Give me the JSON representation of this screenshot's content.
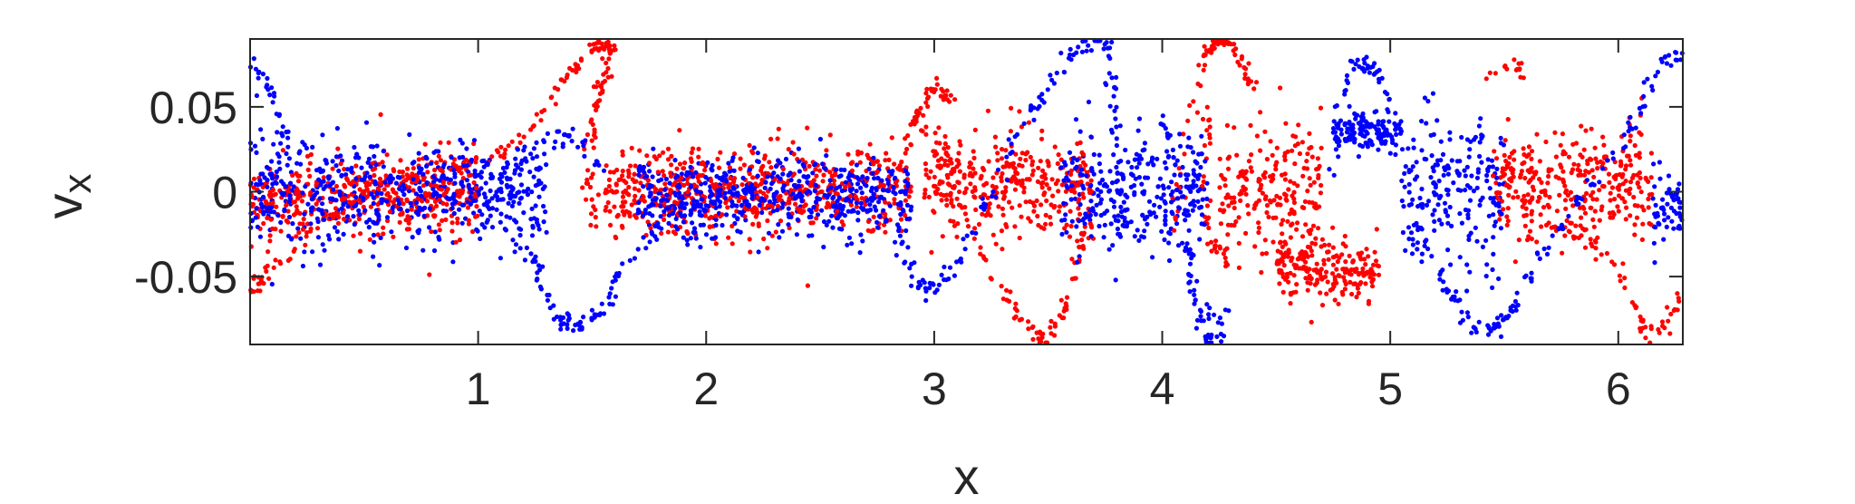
{
  "chart_data": {
    "type": "scatter",
    "title": "",
    "xlabel": "x",
    "ylabel_main": "v",
    "ylabel_sub": "x",
    "xlim": [
      0,
      6.283
    ],
    "ylim": [
      -0.09,
      0.09
    ],
    "xticks": [
      1,
      2,
      3,
      4,
      5,
      6
    ],
    "xtick_labels": [
      "1",
      "2",
      "3",
      "4",
      "5",
      "6"
    ],
    "yticks": [
      -0.05,
      0,
      0.05
    ],
    "ytick_labels": [
      "-0.05",
      "0",
      "0.05"
    ],
    "grid": false,
    "legend": "none",
    "series": [
      {
        "color": "#ff0000",
        "points_per_unit": 450,
        "bulk": [
          {
            "x0": 0.0,
            "x1": 0.25,
            "center": -0.005,
            "spread": 0.018
          },
          {
            "x0": 0.25,
            "x1": 1.0,
            "center": 0.0,
            "spread": 0.022
          },
          {
            "x0": 1.55,
            "x1": 2.9,
            "center": 0.0,
            "spread": 0.024
          },
          {
            "x0": 2.95,
            "x1": 3.7,
            "center": 0.005,
            "spread": 0.028
          },
          {
            "x0": 4.25,
            "x1": 4.7,
            "center": 0.0,
            "spread": 0.035
          },
          {
            "x0": 4.5,
            "x1": 4.95,
            "center": -0.045,
            "spread": 0.015
          },
          {
            "x0": 5.45,
            "x1": 6.15,
            "center": 0.005,
            "spread": 0.028
          }
        ],
        "curves": [
          {
            "pts": [
              [
                0.0,
                -0.058
              ],
              [
                0.1,
                -0.045
              ],
              [
                0.3,
                -0.018
              ],
              [
                0.6,
                0.005
              ],
              [
                0.9,
                0.015
              ],
              [
                1.15,
                0.025
              ],
              [
                1.35,
                0.06
              ],
              [
                1.5,
                0.085
              ],
              [
                1.58,
                0.087
              ]
            ],
            "n": 140
          },
          {
            "pts": [
              [
                1.58,
                0.085
              ],
              [
                1.52,
                0.055
              ],
              [
                1.48,
                0.02
              ],
              [
                1.5,
                -0.02
              ]
            ],
            "n": 60
          },
          {
            "pts": [
              [
                2.83,
                0.005
              ],
              [
                2.92,
                0.045
              ],
              [
                3.0,
                0.062
              ],
              [
                3.1,
                0.052
              ]
            ],
            "n": 45
          },
          {
            "pts": [
              [
                2.95,
                0.04
              ],
              [
                3.1,
                0.0
              ],
              [
                3.25,
                -0.05
              ],
              [
                3.4,
                -0.08
              ],
              [
                3.5,
                -0.088
              ],
              [
                3.6,
                -0.06
              ],
              [
                3.66,
                -0.02
              ]
            ],
            "n": 90
          },
          {
            "pts": [
              [
                4.05,
                -0.035
              ],
              [
                4.1,
                0.03
              ],
              [
                4.18,
                0.08
              ],
              [
                4.25,
                0.09
              ],
              [
                4.32,
                0.085
              ],
              [
                4.4,
                0.06
              ]
            ],
            "n": 70
          },
          {
            "pts": [
              [
                4.2,
                0.05
              ],
              [
                4.18,
                0.0
              ],
              [
                4.22,
                -0.03
              ],
              [
                4.32,
                -0.045
              ]
            ],
            "n": 40
          },
          {
            "pts": [
              [
                5.4,
                0.06
              ],
              [
                5.48,
                0.073
              ],
              [
                5.56,
                0.076
              ],
              [
                5.58,
                0.07
              ]
            ],
            "n": 15
          },
          {
            "pts": [
              [
                5.55,
                -0.03
              ],
              [
                5.75,
                -0.02
              ],
              [
                5.95,
                -0.035
              ],
              [
                6.1,
                -0.075
              ],
              [
                6.15,
                -0.088
              ],
              [
                6.22,
                -0.072
              ],
              [
                6.28,
                -0.06
              ]
            ],
            "n": 70
          }
        ]
      },
      {
        "color": "#0000ff",
        "points_per_unit": 450,
        "bulk": [
          {
            "x0": 0.0,
            "x1": 0.6,
            "center": 0.0,
            "spread": 0.03
          },
          {
            "x0": 0.6,
            "x1": 1.3,
            "center": 0.0,
            "spread": 0.024
          },
          {
            "x0": 1.7,
            "x1": 2.9,
            "center": -0.002,
            "spread": 0.02
          },
          {
            "x0": 3.55,
            "x1": 4.2,
            "center": 0.0,
            "spread": 0.03
          },
          {
            "x0": 4.75,
            "x1": 5.05,
            "center": 0.035,
            "spread": 0.012
          },
          {
            "x0": 5.05,
            "x1": 5.5,
            "center": 0.0,
            "spread": 0.04
          },
          {
            "x0": 6.15,
            "x1": 6.28,
            "center": -0.01,
            "spread": 0.02
          }
        ],
        "curves": [
          {
            "pts": [
              [
                0.0,
                0.078
              ],
              [
                0.05,
                0.07
              ],
              [
                0.1,
                0.055
              ],
              [
                0.15,
                0.03
              ]
            ],
            "n": 25
          },
          {
            "pts": [
              [
                1.15,
                -0.01
              ],
              [
                1.25,
                -0.045
              ],
              [
                1.35,
                -0.075
              ],
              [
                1.45,
                -0.08
              ],
              [
                1.55,
                -0.07
              ],
              [
                1.65,
                -0.04
              ],
              [
                1.8,
                -0.02
              ],
              [
                2.0,
                -0.005
              ],
              [
                2.2,
                0.0
              ]
            ],
            "n": 110
          },
          {
            "pts": [
              [
                1.2,
                0.02
              ],
              [
                1.35,
                0.035
              ],
              [
                1.45,
                0.03
              ],
              [
                1.55,
                0.01
              ]
            ],
            "n": 30
          },
          {
            "pts": [
              [
                2.8,
                0.01
              ],
              [
                2.85,
                -0.03
              ],
              [
                2.92,
                -0.055
              ],
              [
                3.0,
                -0.058
              ],
              [
                3.1,
                -0.04
              ],
              [
                3.25,
                0.0
              ],
              [
                3.4,
                0.04
              ],
              [
                3.55,
                0.075
              ],
              [
                3.7,
                0.088
              ],
              [
                3.78,
                0.085
              ]
            ],
            "n": 120
          },
          {
            "pts": [
              [
                3.75,
                0.08
              ],
              [
                3.8,
                0.04
              ],
              [
                3.82,
                0.0
              ],
              [
                3.85,
                -0.03
              ]
            ],
            "n": 35
          },
          {
            "pts": [
              [
                4.0,
                0.05
              ],
              [
                4.05,
                0.02
              ],
              [
                4.1,
                -0.03
              ],
              [
                4.15,
                -0.07
              ],
              [
                4.2,
                -0.088
              ],
              [
                4.28,
                -0.085
              ]
            ],
            "n": 55
          },
          {
            "pts": [
              [
                4.2,
                -0.07
              ],
              [
                4.25,
                -0.075
              ],
              [
                4.3,
                -0.07
              ]
            ],
            "n": 10
          },
          {
            "pts": [
              [
                4.75,
                0.01
              ],
              [
                4.8,
                0.06
              ],
              [
                4.85,
                0.077
              ],
              [
                4.92,
                0.072
              ],
              [
                5.0,
                0.05
              ]
            ],
            "n": 45
          },
          {
            "pts": [
              [
                5.1,
                -0.015
              ],
              [
                5.25,
                -0.06
              ],
              [
                5.4,
                -0.085
              ],
              [
                5.5,
                -0.075
              ],
              [
                5.65,
                -0.04
              ],
              [
                5.8,
                -0.01
              ],
              [
                5.95,
                0.015
              ],
              [
                6.1,
                0.05
              ],
              [
                6.2,
                0.078
              ],
              [
                6.28,
                0.08
              ]
            ],
            "n": 130
          }
        ]
      }
    ]
  }
}
